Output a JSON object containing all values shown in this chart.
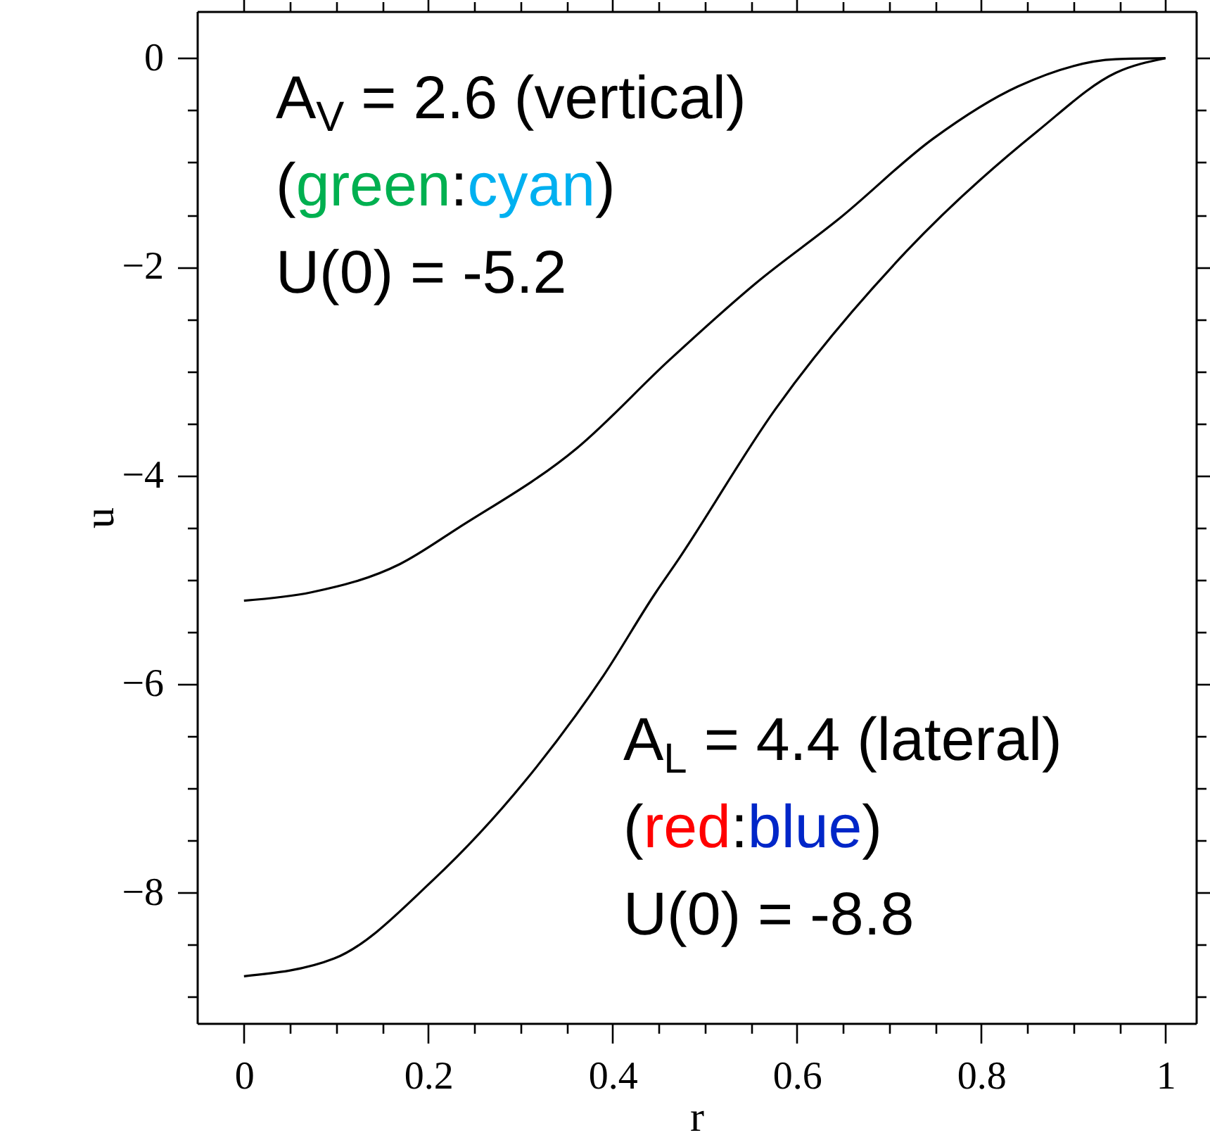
{
  "chart_data": {
    "type": "line",
    "xlabel": "r",
    "ylabel": "u",
    "xlim": [
      -0.051,
      1.033
    ],
    "ylim": [
      -9.25,
      0.45
    ],
    "xticks": [
      0,
      0.2,
      0.4,
      0.6,
      0.8,
      1,
      {
        "value": 0.05,
        "label": null
      },
      {
        "value": 0.1,
        "label": null
      },
      {
        "value": 0.15,
        "label": null
      },
      {
        "value": 0.25,
        "label": null
      },
      {
        "value": 0.3,
        "label": null
      },
      {
        "value": 0.35,
        "label": null
      },
      {
        "value": 0.45,
        "label": null
      },
      {
        "value": 0.5,
        "label": null
      },
      {
        "value": 0.55,
        "label": null
      },
      {
        "value": 0.65,
        "label": null
      },
      {
        "value": 0.7,
        "label": null
      },
      {
        "value": 0.75,
        "label": null
      },
      {
        "value": 0.85,
        "label": null
      },
      {
        "value": 0.9,
        "label": null
      },
      {
        "value": 0.95,
        "label": null
      }
    ],
    "yticks": [
      0,
      -2,
      -4,
      -6,
      -8,
      {
        "value": -0.5,
        "label": null
      },
      {
        "value": -1,
        "label": null
      },
      {
        "value": -1.5,
        "label": null
      },
      {
        "value": -2.5,
        "label": null
      },
      {
        "value": -3,
        "label": null
      },
      {
        "value": -3.5,
        "label": null
      },
      {
        "value": -4.5,
        "label": null
      },
      {
        "value": -5,
        "label": null
      },
      {
        "value": -5.5,
        "label": null
      },
      {
        "value": -6.5,
        "label": null
      },
      {
        "value": -7,
        "label": null
      },
      {
        "value": -7.5,
        "label": null
      },
      {
        "value": -8.5,
        "label": null
      },
      {
        "value": -9,
        "label": null
      }
    ],
    "grid": false,
    "line_style": "solid",
    "series": [
      {
        "color": "#000000",
        "x": [
          0,
          0.073,
          0.169,
          0.233,
          0.361,
          0.462,
          0.555,
          0.647,
          0.748,
          0.84,
          0.946,
          1
        ],
        "values": [
          -5.2,
          -5.12,
          -4.85,
          -4.5,
          -3.74,
          -2.89,
          -2.16,
          -1.53,
          -0.77,
          -0.27,
          -0.01,
          0
        ]
      },
      {
        "color": "#000000",
        "x": [
          0,
          0.098,
          0.205,
          0.305,
          0.39,
          0.447,
          0.468,
          0.577,
          0.719,
          0.861,
          0.946,
          1
        ],
        "values": [
          -8.8,
          -8.63,
          -7.88,
          -6.93,
          -5.92,
          -5.12,
          -4.85,
          -3.36,
          -1.85,
          -0.7,
          -0.14,
          0
        ]
      }
    ],
    "annotations": [
      "A$_{V}$ = 2.6 (vertical)",
      "(green:cyan)",
      "U(0) = -5.2",
      "A$_{L}$ = 4.4 (lateral)",
      "(red:blue)",
      "U(0) = -8.8"
    ]
  }
}
